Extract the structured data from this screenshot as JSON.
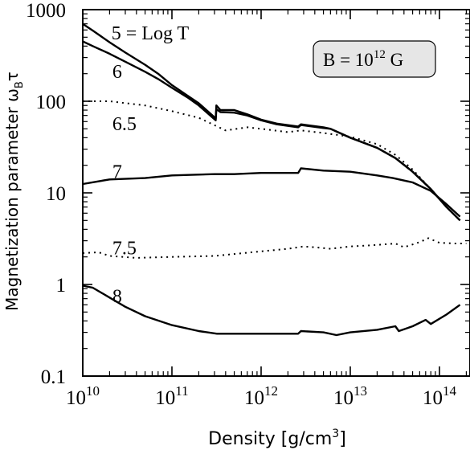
{
  "chart_data": {
    "type": "line",
    "title": "",
    "xlabel": "Density [g/cm³]",
    "xlabel_parts": [
      "Density [g/cm",
      "3",
      "]"
    ],
    "ylabel": "Magnetization parameter ω_Bτ",
    "ylabel_parts": [
      "Magnetization parameter ω",
      "B",
      "τ"
    ],
    "x_scale": "log",
    "y_scale": "log",
    "xlim": [
      10000000000.0,
      220000000000000.0
    ],
    "ylim": [
      0.1,
      1000
    ],
    "x_ticks": [
      {
        "value": 10000000000.0,
        "base": "10",
        "exp": "10"
      },
      {
        "value": 100000000000.0,
        "base": "10",
        "exp": "11"
      },
      {
        "value": 1000000000000.0,
        "base": "10",
        "exp": "12"
      },
      {
        "value": 10000000000000.0,
        "base": "10",
        "exp": "13"
      },
      {
        "value": 100000000000000.0,
        "base": "10",
        "exp": "14"
      }
    ],
    "y_ticks": [
      {
        "value": 0.1,
        "label": "0.1"
      },
      {
        "value": 1,
        "label": "1"
      },
      {
        "value": 10,
        "label": "10"
      },
      {
        "value": 100,
        "label": "100"
      },
      {
        "value": 1000,
        "label": "1000"
      }
    ],
    "annotation_box": {
      "base": "B = 10",
      "exp": "12",
      "suffix": " G"
    },
    "series": [
      {
        "label": "5 = Log T",
        "label_at": [
          21000000000.0,
          570
        ],
        "style": "solid",
        "points": [
          [
            10000000000.0,
            700
          ],
          [
            13000000000.0,
            590
          ],
          [
            20000000000.0,
            440
          ],
          [
            30000000000.0,
            340
          ],
          [
            50000000000.0,
            250
          ],
          [
            70000000000.0,
            200
          ],
          [
            100000000000.0,
            150
          ],
          [
            150000000000.0,
            115
          ],
          [
            200000000000.0,
            95
          ],
          [
            310000000000.0,
            65
          ],
          [
            315000000000.0,
            90
          ],
          [
            350000000000.0,
            80
          ],
          [
            500000000000.0,
            80
          ],
          [
            700000000000.0,
            72
          ],
          [
            1000000000000.0,
            63
          ],
          [
            1500000000000.0,
            57
          ],
          [
            2600000000000.0,
            53
          ],
          [
            2800000000000.0,
            56
          ],
          [
            5000000000000.0,
            52
          ],
          [
            6000000000000.0,
            50
          ],
          [
            10000000000000.0,
            40
          ],
          [
            20000000000000.0,
            31
          ],
          [
            32000000000000.0,
            24
          ],
          [
            50000000000000.0,
            17
          ],
          [
            80000000000000.0,
            11
          ],
          [
            120000000000000.0,
            7
          ],
          [
            170000000000000.0,
            5
          ]
        ]
      },
      {
        "label": "6",
        "label_at": [
          21500000000.0,
          215
        ],
        "style": "solid",
        "points": [
          [
            10000000000.0,
            450
          ],
          [
            13000000000.0,
            400
          ],
          [
            20000000000.0,
            330
          ],
          [
            30000000000.0,
            270
          ],
          [
            50000000000.0,
            210
          ],
          [
            70000000000.0,
            175
          ],
          [
            100000000000.0,
            140
          ],
          [
            150000000000.0,
            110
          ],
          [
            200000000000.0,
            90
          ],
          [
            310000000000.0,
            62
          ],
          [
            315000000000.0,
            82
          ],
          [
            350000000000.0,
            76
          ],
          [
            500000000000.0,
            75
          ],
          [
            700000000000.0,
            70
          ],
          [
            1000000000000.0,
            62
          ],
          [
            1500000000000.0,
            56
          ],
          [
            2600000000000.0,
            52
          ],
          [
            2800000000000.0,
            55
          ],
          [
            5000000000000.0,
            51
          ],
          [
            6000000000000.0,
            50
          ],
          [
            10000000000000.0,
            40
          ],
          [
            20000000000000.0,
            31
          ],
          [
            32000000000000.0,
            24
          ],
          [
            50000000000000.0,
            17
          ],
          [
            80000000000000.0,
            11
          ],
          [
            120000000000000.0,
            7
          ],
          [
            170000000000000.0,
            5
          ]
        ]
      },
      {
        "label": "6.5",
        "label_at": [
          21500000000.0,
          58
        ],
        "style": "dotted",
        "points": [
          [
            10000000000.0,
            100
          ],
          [
            20000000000.0,
            100
          ],
          [
            50000000000.0,
            90
          ],
          [
            100000000000.0,
            78
          ],
          [
            200000000000.0,
            66
          ],
          [
            310000000000.0,
            54
          ],
          [
            400000000000.0,
            48
          ],
          [
            700000000000.0,
            52
          ],
          [
            1000000000000.0,
            50
          ],
          [
            2000000000000.0,
            46
          ],
          [
            2800000000000.0,
            48
          ],
          [
            5000000000000.0,
            45
          ],
          [
            10000000000000.0,
            41
          ],
          [
            20000000000000.0,
            34
          ],
          [
            32000000000000.0,
            26
          ],
          [
            50000000000000.0,
            18
          ],
          [
            80000000000000.0,
            11
          ],
          [
            120000000000000.0,
            7
          ],
          [
            170000000000000.0,
            5
          ]
        ]
      },
      {
        "label": "7",
        "label_at": [
          21500000000.0,
          17.5
        ],
        "style": "solid",
        "points": [
          [
            10000000000.0,
            12.5
          ],
          [
            20000000000.0,
            14
          ],
          [
            50000000000.0,
            14.5
          ],
          [
            100000000000.0,
            15.5
          ],
          [
            300000000000.0,
            16
          ],
          [
            500000000000.0,
            16
          ],
          [
            1000000000000.0,
            16.5
          ],
          [
            2600000000000.0,
            16.5
          ],
          [
            2800000000000.0,
            18.5
          ],
          [
            5000000000000.0,
            17.5
          ],
          [
            10000000000000.0,
            17
          ],
          [
            20000000000000.0,
            15.5
          ],
          [
            30000000000000.0,
            14.5
          ],
          [
            50000000000000.0,
            13
          ],
          [
            80000000000000.0,
            10.5
          ],
          [
            120000000000000.0,
            7.5
          ],
          [
            170000000000000.0,
            5.5
          ]
        ]
      },
      {
        "label": "7.5",
        "label_at": [
          21500000000.0,
          2.55
        ],
        "style": "dotted",
        "points": [
          [
            10000000000.0,
            2.2
          ],
          [
            15000000000.0,
            2.25
          ],
          [
            20000000000.0,
            2.05
          ],
          [
            40000000000.0,
            1.95
          ],
          [
            100000000000.0,
            2.0
          ],
          [
            300000000000.0,
            2.05
          ],
          [
            500000000000.0,
            2.15
          ],
          [
            1000000000000.0,
            2.3
          ],
          [
            2000000000000.0,
            2.45
          ],
          [
            3000000000000.0,
            2.6
          ],
          [
            4000000000000.0,
            2.55
          ],
          [
            6000000000000.0,
            2.45
          ],
          [
            10000000000000.0,
            2.6
          ],
          [
            20000000000000.0,
            2.7
          ],
          [
            32000000000000.0,
            2.8
          ],
          [
            40000000000000.0,
            2.55
          ],
          [
            60000000000000.0,
            2.9
          ],
          [
            75000000000000.0,
            3.2
          ],
          [
            100000000000000.0,
            2.85
          ],
          [
            150000000000000.0,
            2.8
          ],
          [
            200000000000000.0,
            2.8
          ]
        ]
      },
      {
        "label": "8",
        "label_at": [
          21500000000.0,
          0.76
        ],
        "style": "solid",
        "points": [
          [
            10000000000.0,
            0.97
          ],
          [
            13000000000.0,
            0.92
          ],
          [
            20000000000.0,
            0.72
          ],
          [
            30000000000.0,
            0.57
          ],
          [
            50000000000.0,
            0.45
          ],
          [
            100000000000.0,
            0.36
          ],
          [
            200000000000.0,
            0.31
          ],
          [
            320000000000.0,
            0.29
          ],
          [
            1000000000000.0,
            0.29
          ],
          [
            2600000000000.0,
            0.29
          ],
          [
            2800000000000.0,
            0.31
          ],
          [
            5000000000000.0,
            0.3
          ],
          [
            7000000000000.0,
            0.28
          ],
          [
            10000000000000.0,
            0.3
          ],
          [
            20000000000000.0,
            0.32
          ],
          [
            32000000000000.0,
            0.35
          ],
          [
            35000000000000.0,
            0.31
          ],
          [
            50000000000000.0,
            0.35
          ],
          [
            70000000000000.0,
            0.41
          ],
          [
            80000000000000.0,
            0.37
          ],
          [
            120000000000000.0,
            0.47
          ],
          [
            170000000000000.0,
            0.6
          ]
        ]
      }
    ]
  }
}
